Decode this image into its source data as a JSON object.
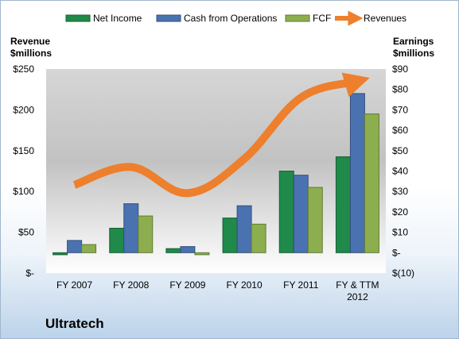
{
  "chart_data": {
    "type": "bar",
    "title": "Ultratech",
    "categories": [
      "FY 2007",
      "FY 2008",
      "FY 2009",
      "FY 2010",
      "FY 2011",
      "FY & TTM 2012"
    ],
    "series": [
      {
        "name": "Net Income",
        "axis": "right",
        "color": "#1f8a4a",
        "values": [
          -1,
          12,
          2,
          17,
          40,
          47
        ]
      },
      {
        "name": "Cash from Operations",
        "axis": "right",
        "color": "#4a72b0",
        "values": [
          6,
          24,
          3,
          23,
          38,
          78
        ]
      },
      {
        "name": "FCF",
        "axis": "right",
        "color": "#8cae4f",
        "values": [
          4,
          18,
          -1,
          14,
          32,
          68
        ]
      },
      {
        "name": "Revenues",
        "axis": "left",
        "type": "line",
        "color": "#ee7f2d",
        "values": [
          108,
          130,
          98,
          140,
          215,
          235
        ]
      }
    ],
    "left_axis": {
      "label": "Revenue\n$millions",
      "min": 0,
      "max": 250,
      "ticks": [
        0,
        50,
        100,
        150,
        200,
        250
      ],
      "tick_labels": [
        "$-",
        "$50",
        "$100",
        "$150",
        "$200",
        "$250"
      ]
    },
    "right_axis": {
      "label": "Earnings\n$millions",
      "min": -10,
      "max": 90,
      "ticks": [
        -10,
        0,
        10,
        20,
        30,
        40,
        50,
        60,
        70,
        80,
        90
      ],
      "tick_labels": [
        "$(10)",
        "$-",
        "$10",
        "$20",
        "$30",
        "$40",
        "$50",
        "$60",
        "$70",
        "$80",
        "$90"
      ]
    },
    "grid": false,
    "legend": "top"
  }
}
